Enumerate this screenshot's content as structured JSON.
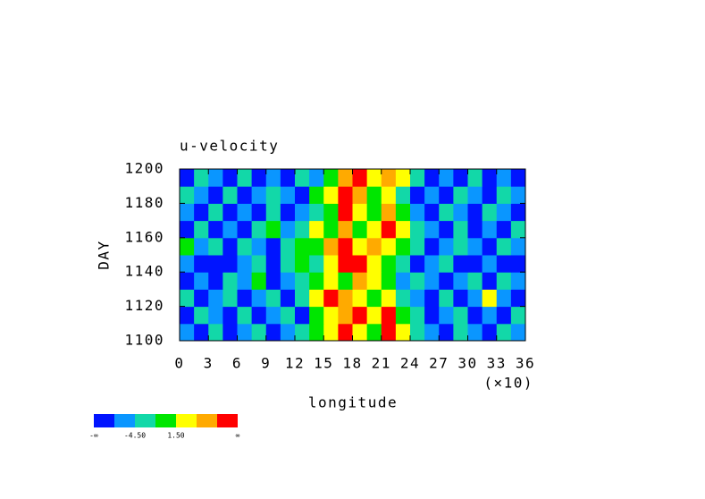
{
  "chart_data": {
    "type": "contour",
    "title": "u-velocity",
    "xlabel": "longitude",
    "ylabel": "DAY",
    "x_scale_label": "(×10)",
    "xlim": [
      0,
      36
    ],
    "ylim": [
      1100,
      1200
    ],
    "xticks": [
      0,
      3,
      6,
      9,
      12,
      15,
      18,
      21,
      24,
      27,
      30,
      33,
      36
    ],
    "yticks": [
      1100,
      1120,
      1140,
      1160,
      1180,
      1200
    ],
    "x": [
      0.75,
      2.25,
      3.75,
      5.25,
      6.75,
      8.25,
      9.75,
      11.25,
      12.75,
      14.25,
      15.75,
      17.25,
      18.75,
      20.25,
      21.75,
      23.25,
      24.75,
      26.25,
      27.75,
      29.25,
      30.75,
      32.25,
      33.75,
      35.25
    ],
    "y": [
      1105,
      1115,
      1125,
      1135,
      1145,
      1155,
      1165,
      1175,
      1185,
      1195
    ],
    "z": [
      [
        -6,
        -9,
        -3,
        -9,
        -6,
        -3,
        -9,
        -6,
        -3,
        0,
        3,
        9,
        3,
        0,
        9,
        3,
        -3,
        -6,
        -9,
        -3,
        -6,
        -9,
        -3,
        -6
      ],
      [
        -9,
        -3,
        -6,
        -9,
        -3,
        -9,
        -6,
        -3,
        -9,
        0,
        3,
        6,
        9,
        3,
        9,
        0,
        -3,
        -9,
        -6,
        -3,
        -9,
        -6,
        -9,
        -3
      ],
      [
        -3,
        -9,
        -6,
        -3,
        -9,
        -6,
        -3,
        -9,
        -3,
        3,
        9,
        6,
        3,
        0,
        3,
        -3,
        -6,
        -9,
        -3,
        -9,
        -6,
        3,
        -6,
        -9
      ],
      [
        -9,
        -6,
        -9,
        -3,
        -6,
        0,
        -9,
        -6,
        -3,
        0,
        3,
        0,
        6,
        3,
        0,
        -6,
        -3,
        -6,
        -9,
        -6,
        -3,
        -9,
        -3,
        -6
      ],
      [
        -6,
        -9,
        -9,
        -9,
        -6,
        -3,
        -9,
        -3,
        0,
        -3,
        3,
        9,
        9,
        3,
        0,
        -3,
        -9,
        -6,
        -3,
        -9,
        -9,
        -6,
        -9,
        -9
      ],
      [
        0,
        -6,
        -3,
        -9,
        -3,
        -6,
        -9,
        -3,
        0,
        0,
        6,
        9,
        3,
        6,
        3,
        0,
        -3,
        -9,
        -6,
        -3,
        -6,
        -9,
        -3,
        -6
      ],
      [
        -9,
        -3,
        -9,
        -6,
        -9,
        -3,
        0,
        -6,
        -3,
        3,
        0,
        6,
        0,
        3,
        9,
        3,
        -3,
        -6,
        -9,
        -3,
        -9,
        -6,
        -9,
        -3
      ],
      [
        -6,
        -9,
        -3,
        -9,
        -6,
        -9,
        -3,
        -9,
        -6,
        -3,
        0,
        9,
        3,
        0,
        6,
        0,
        -6,
        -9,
        -3,
        -6,
        -9,
        -3,
        -6,
        -9
      ],
      [
        -3,
        -6,
        -9,
        -3,
        -9,
        -6,
        -3,
        -6,
        -9,
        0,
        3,
        9,
        6,
        0,
        3,
        -3,
        -9,
        -6,
        -9,
        -3,
        -6,
        -9,
        -3,
        -6
      ],
      [
        -9,
        -3,
        -6,
        -9,
        -3,
        -9,
        -6,
        -9,
        -3,
        -6,
        0,
        6,
        9,
        3,
        6,
        3,
        -3,
        -9,
        -6,
        -9,
        -3,
        -9,
        -6,
        -9
      ]
    ],
    "colorbar": {
      "colors": [
        "#0014ff",
        "#0a96ff",
        "#12d8a8",
        "#00e600",
        "#ffff00",
        "#ffaa00",
        "#ff0000"
      ],
      "boundaries": [
        null,
        -7.5,
        -4.5,
        -1.5,
        1.5,
        4.5,
        7.5,
        null
      ],
      "boundary_labels": [
        "-∞",
        null,
        "-4.50",
        null,
        "1.50",
        null,
        null,
        "∞"
      ]
    }
  }
}
